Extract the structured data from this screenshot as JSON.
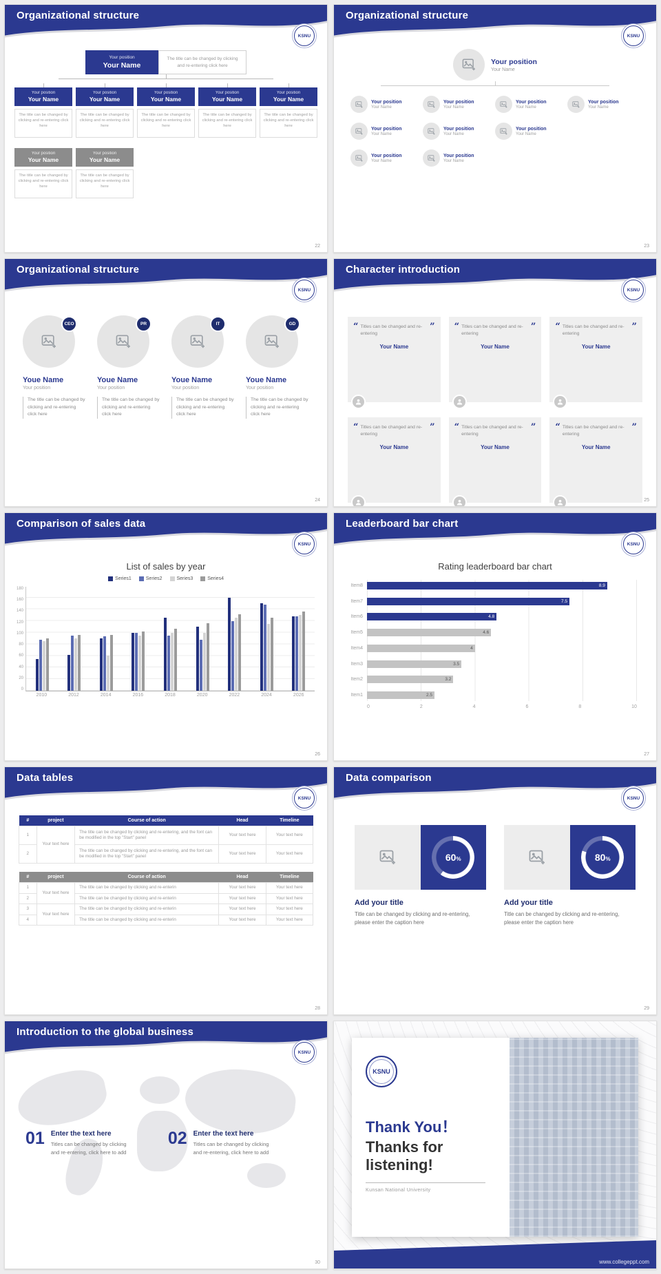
{
  "badge_text": "KSNU",
  "theme": {
    "primary": "#2b3990",
    "primary_dark": "#1f2d6e",
    "gray": "#8c8c8c"
  },
  "slides": {
    "s22": {
      "title": "Organizational structure",
      "page": "22",
      "node": {
        "position": "Your position",
        "name": "Your Name"
      },
      "caption": "The title can be changed by clicking and re-entering click here"
    },
    "s23": {
      "title": "Organizational structure",
      "page": "23",
      "node": {
        "position": "Your position",
        "name": "Your Name"
      }
    },
    "s24": {
      "title": "Organizational structure",
      "page": "24",
      "badges": [
        "CEO",
        "PR",
        "IT",
        "GD"
      ],
      "name": "Youe Name",
      "position": "Your position",
      "caption": "The title can be changed by clicking and re-entering click here"
    },
    "s25": {
      "title": "Character introduction",
      "page": "25",
      "open_quote": "“",
      "close_quote": "”",
      "quote": "Titles can be changed and re-entering",
      "name": "Your Name"
    },
    "s26": {
      "title": "Comparison of sales data",
      "page": "26",
      "chart_data": {
        "type": "bar",
        "title": "List of sales by year",
        "categories": [
          "2010",
          "2012",
          "2014",
          "2016",
          "2018",
          "2020",
          "2022",
          "2024",
          "2026"
        ],
        "series": [
          {
            "name": "Series1",
            "color": "#22307c",
            "values": [
              55,
              62,
              90,
              100,
              125,
              110,
              160,
              150,
              128
            ]
          },
          {
            "name": "Series2",
            "color": "#5b6cb3",
            "values": [
              88,
              95,
              93,
              100,
              95,
              88,
              120,
              148,
              128
            ]
          },
          {
            "name": "Series3",
            "color": "#d4d4d4",
            "values": [
              85,
              90,
              60,
              95,
              100,
              100,
              125,
              115,
              130
            ]
          },
          {
            "name": "Series4",
            "color": "#9b9b9b",
            "values": [
              90,
              96,
              96,
              102,
              106,
              116,
              132,
              126,
              136
            ]
          }
        ],
        "ylim": [
          0,
          180
        ],
        "ytick_step": 20,
        "grid": true,
        "legend_position": "top"
      }
    },
    "s27": {
      "title": "Leaderboard bar chart",
      "page": "27",
      "chart_data": {
        "type": "bar-horizontal",
        "title": "Rating leaderboard bar chart",
        "categories": [
          "Item8",
          "Item7",
          "Item6",
          "Item5",
          "Item4",
          "Item3",
          "Item2",
          "Item1"
        ],
        "values": [
          8.9,
          7.5,
          4.8,
          4.6,
          4,
          3.5,
          3.2,
          2.5
        ],
        "colors": [
          "#2b3990",
          "#2b3990",
          "#2b3990",
          "#c3c3c3",
          "#c3c3c3",
          "#c3c3c3",
          "#c3c3c3",
          "#c3c3c3"
        ],
        "xlim": [
          0,
          10
        ],
        "xticks": [
          0,
          2,
          4,
          6,
          8,
          10
        ],
        "grid": true
      }
    },
    "s28": {
      "title": "Data tables",
      "page": "28",
      "headers": [
        "#",
        "project",
        "Course of action",
        "Head",
        "Timeline"
      ],
      "cell": "Your text here",
      "table1_course": "The title can be changed by clicking and re-entering, and the font can be modified in the top \"Start\" panel",
      "table2_course": "The title can be changed by clicking and re-enterin",
      "t1_rows": [
        "1",
        "2"
      ],
      "t2_rows": [
        "1",
        "2",
        "3",
        "4"
      ]
    },
    "s29": {
      "title": "Data comparison",
      "page": "29",
      "pct": "%",
      "cards": [
        {
          "percent": 60,
          "heading": "Add your title",
          "caption": "Title can be changed by clicking and re-entering, please enter the caption here"
        },
        {
          "percent": 80,
          "heading": "Add your title",
          "caption": "Title can be changed by clicking and re-entering, please enter the caption here"
        }
      ]
    },
    "s30": {
      "title": "Introduction to the global business",
      "page": "30",
      "items": [
        {
          "num": "01",
          "heading": "Enter the text here",
          "caption": "Titles can be changed by clicking and re-entering, click here to add"
        },
        {
          "num": "02",
          "heading": "Enter the text here",
          "caption": "Titles can be changed by clicking and re-entering, click here to add"
        }
      ]
    },
    "final": {
      "logo": "KSNU",
      "thank_you": "Thank You！",
      "subtitle": "Thanks for listening!",
      "university": "Kunsan National University",
      "url": "www.collegeppt.com"
    }
  }
}
